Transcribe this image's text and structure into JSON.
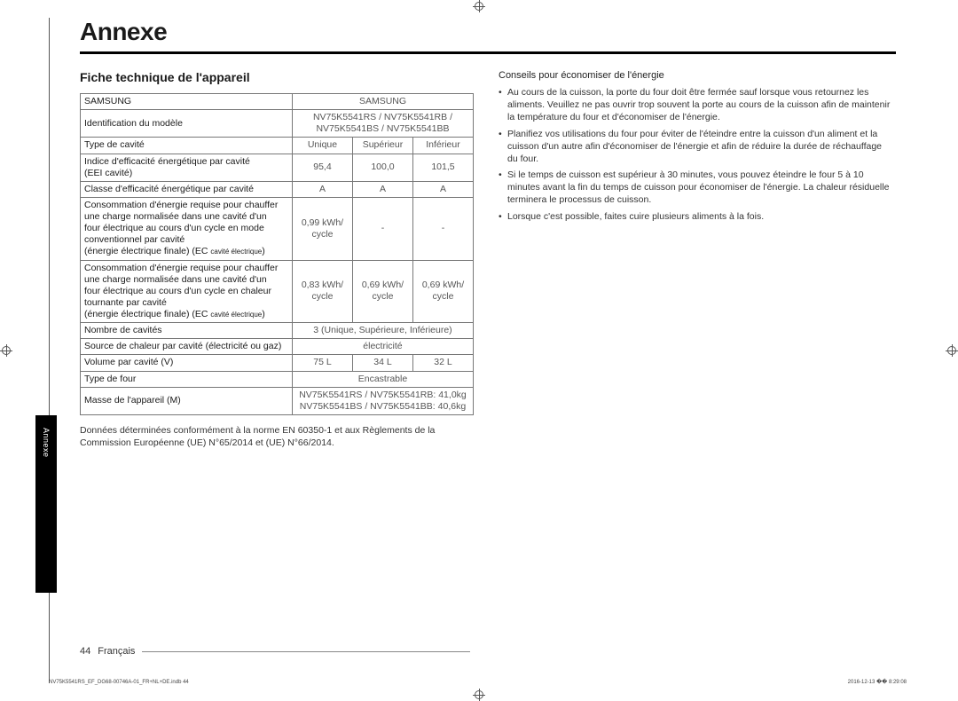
{
  "crop_color": "#555555",
  "title": "Annexe",
  "section_heading": "Fiche technique de l'appareil",
  "table": {
    "r1_label": "SAMSUNG",
    "r1_value": "SAMSUNG",
    "r2_label": "Identification du modèle",
    "r2_value_line1": "NV75K5541RS / NV75K5541RB /",
    "r2_value_line2": "NV75K5541BS / NV75K5541BB",
    "r3_label": "Type de cavité",
    "r3_c1": "Unique",
    "r3_c2": "Supérieur",
    "r3_c3": "Inférieur",
    "r4_label_line1": "Indice d'efficacité énergétique par cavité",
    "r4_label_line2": "(EEI cavité)",
    "r4_c1": "95,4",
    "r4_c2": "100,0",
    "r4_c3": "101,5",
    "r5_label": "Classe d'efficacité énergétique par cavité",
    "r5_c1": "A",
    "r5_c2": "A",
    "r5_c3": "A",
    "r6_label_l1": "Consommation d'énergie requise pour chauffer",
    "r6_label_l2": "une charge normalisée dans une cavité d'un",
    "r6_label_l3": "four électrique au cours d'un cycle en mode",
    "r6_label_l4": "conventionnel par cavité",
    "r6_label_l5a": "(énergie électrique finale) (EC ",
    "r6_label_l5b": "cavité électrique",
    "r6_label_l5c": ")",
    "r6_c1_l1": "0,99 kWh/",
    "r6_c1_l2": "cycle",
    "r6_c2": "-",
    "r6_c3": "-",
    "r7_label_l1": "Consommation d'énergie requise pour chauffer",
    "r7_label_l2": "une charge normalisée dans une cavité d'un",
    "r7_label_l3": "four électrique au cours d'un cycle en chaleur",
    "r7_label_l4": "tournante par cavité",
    "r7_label_l5a": "(énergie électrique finale) (EC ",
    "r7_label_l5b": "cavité électrique",
    "r7_label_l5c": ")",
    "r7_c1_l1": "0,83 kWh/",
    "r7_c1_l2": "cycle",
    "r7_c2_l1": "0,69 kWh/",
    "r7_c2_l2": "cycle",
    "r7_c3_l1": "0,69 kWh/",
    "r7_c3_l2": "cycle",
    "r8_label": "Nombre de cavités",
    "r8_value": "3 (Unique, Supérieure, Inférieure)",
    "r9_label": "Source de chaleur par cavité (électricité ou gaz)",
    "r9_value": "électricité",
    "r10_label": "Volume par cavité (V)",
    "r10_c1": "75 L",
    "r10_c2": "34 L",
    "r10_c3": "32 L",
    "r11_label": "Type de four",
    "r11_value": "Encastrable",
    "r12_label": "Masse de l'appareil (M)",
    "r12_value_l1": "NV75K5541RS / NV75K5541RB: 41,0kg",
    "r12_value_l2": "NV75K5541BS / NV75K5541BB: 40,6kg"
  },
  "footnote_l1": "Données déterminées conformément à la norme EN 60350-1 et aux Règlements de la",
  "footnote_l2": "Commission Européenne (UE) N°65/2014 et (UE) N°66/2014.",
  "right": {
    "subhead": "Conseils pour économiser de l'énergie",
    "tips": [
      "Au cours de la cuisson, la porte du four doit être fermée sauf lorsque vous retournez les aliments. Veuillez ne pas ouvrir trop souvent la porte au cours de la cuisson afin de maintenir la température du four et d'économiser de l'énergie.",
      "Planifiez vos utilisations du four pour éviter de l'éteindre entre la cuisson d'un aliment et la cuisson d'un autre afin d'économiser de l'énergie et afin de réduire la durée de réchauffage du four.",
      "Si le temps de cuisson est supérieur à 30 minutes, vous pouvez éteindre le four 5 à 10 minutes avant la fin du temps de cuisson pour économiser de l'énergie. La chaleur résiduelle terminera le processus de cuisson.",
      "Lorsque c'est possible, faites cuire plusieurs aliments à la fois."
    ]
  },
  "side_tab": "Annexe",
  "footer_page": "44",
  "footer_lang": "Français",
  "tiny_left": "NV75K5541RS_EF_DG68-00746A-01_FR+NL+DE.indb   44",
  "tiny_right": "2016-12-13   �� 8:29:08"
}
